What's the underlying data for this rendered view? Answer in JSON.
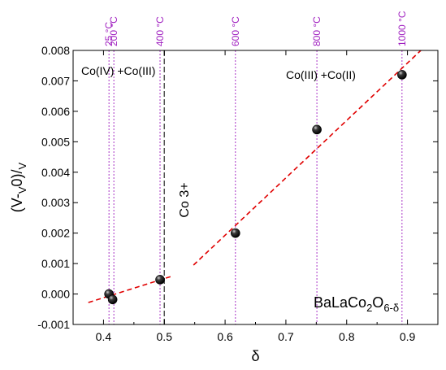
{
  "chart_data": {
    "type": "scatter",
    "xlabel": "δ",
    "ylabel": "(V-V0)/V0",
    "xlim": [
      0.35,
      0.95
    ],
    "ylim": [
      -0.001,
      0.008
    ],
    "xticks": [
      0.4,
      0.5,
      0.6,
      0.7,
      0.8,
      0.9
    ],
    "yticks": [
      -0.001,
      0.0,
      0.001,
      0.002,
      0.003,
      0.004,
      0.005,
      0.006,
      0.007,
      0.008
    ],
    "xtick_labels": [
      "0.4",
      "0.5",
      "0.6",
      "0.7",
      "0.8",
      "0.9"
    ],
    "ytick_labels": [
      "-0.001",
      "0.000",
      "0.001",
      "0.002",
      "0.003",
      "0.004",
      "0.005",
      "0.006",
      "0.007",
      "0.008"
    ],
    "grid": false,
    "series": [
      {
        "x": [
          0.409,
          0.415,
          0.493,
          0.617,
          0.751,
          0.891
        ],
        "y": [
          0.0,
          -0.00018,
          0.00047,
          0.002,
          0.0054,
          0.0072
        ]
      }
    ],
    "fit_lines": [
      {
        "x": [
          0.375,
          0.515
        ],
        "y": [
          -0.00028,
          0.0006
        ]
      },
      {
        "x": [
          0.548,
          0.922
        ],
        "y": [
          0.00095,
          0.008
        ]
      }
    ],
    "temperature_lines": [
      {
        "x": 0.409,
        "label": "25 °C"
      },
      {
        "x": 0.417,
        "label": "200 °C"
      },
      {
        "x": 0.493,
        "label": "400 °C"
      },
      {
        "x": 0.617,
        "label": "600 °C"
      },
      {
        "x": 0.751,
        "label": "800 °C"
      },
      {
        "x": 0.891,
        "label": "1000 °C"
      }
    ],
    "boundary_line": {
      "x": 0.5
    },
    "annotations": {
      "left_region": "Co(IV) +Co(III)",
      "right_region": "Co(III) +Co(II)",
      "boundary": "Co 3+",
      "compound": "BaLaCo2O6-δ"
    },
    "colors": {
      "points": "#1a1a1a",
      "fit_line": "#e00000",
      "temperature_line": "#a020c0",
      "boundary_line": "#555555"
    }
  }
}
